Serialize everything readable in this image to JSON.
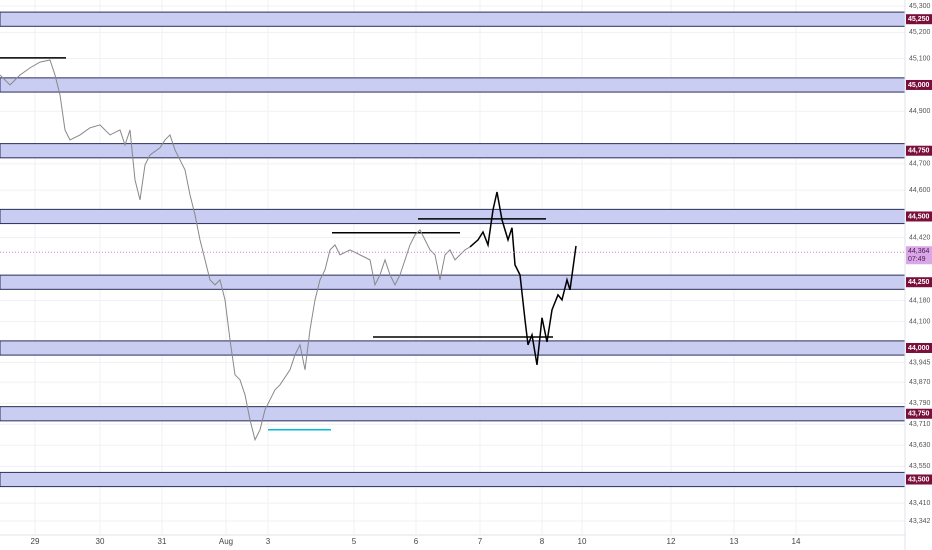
{
  "chart_data": {
    "type": "line",
    "xlim": [
      0,
      905
    ],
    "ylim": [
      43289,
      45323
    ],
    "xticks": [
      {
        "value": 35,
        "label": "29"
      },
      {
        "value": 100,
        "label": "30"
      },
      {
        "value": 162,
        "label": "31"
      },
      {
        "value": 226,
        "label": "Aug"
      },
      {
        "value": 268,
        "label": "3"
      },
      {
        "value": 354,
        "label": "5"
      },
      {
        "value": 416,
        "label": "6"
      },
      {
        "value": 480,
        "label": "7"
      },
      {
        "value": 542,
        "label": "8"
      },
      {
        "value": 582,
        "label": "10"
      },
      {
        "value": 671,
        "label": "12"
      },
      {
        "value": 734,
        "label": "13"
      },
      {
        "value": 796,
        "label": "14"
      }
    ],
    "yticks": [
      {
        "value": 45300,
        "label": "45,300"
      },
      {
        "value": 45200,
        "label": "45,200"
      },
      {
        "value": 45100,
        "label": "45,100"
      },
      {
        "value": 44900,
        "label": "44,900"
      },
      {
        "value": 44700,
        "label": "44,700"
      },
      {
        "value": 44600,
        "label": "44,600"
      },
      {
        "value": 44420,
        "label": "44,420"
      },
      {
        "value": 44180,
        "label": "44,180"
      },
      {
        "value": 44100,
        "label": "44,100"
      },
      {
        "value": 43945,
        "label": "43,945"
      },
      {
        "value": 43870,
        "label": "43,870"
      },
      {
        "value": 43790,
        "label": "43,790"
      },
      {
        "value": 43710,
        "label": "43,710"
      },
      {
        "value": 43630,
        "label": "43,630"
      },
      {
        "value": 43550,
        "label": "43,550"
      },
      {
        "value": 43410,
        "label": "43,410"
      },
      {
        "value": 43342,
        "label": "43,342"
      }
    ],
    "zones": [
      {
        "value": 45250,
        "label": "45,250"
      },
      {
        "value": 45000,
        "label": "45,000"
      },
      {
        "value": 44750,
        "label": "44,750"
      },
      {
        "value": 44500,
        "label": "44,500"
      },
      {
        "value": 44250,
        "label": "44,250"
      },
      {
        "value": 44000,
        "label": "44,000"
      },
      {
        "value": 43750,
        "label": "43,750"
      },
      {
        "value": 43500,
        "label": "43,500"
      }
    ],
    "zone_color": "#c9cdf2",
    "last_price": {
      "value": 44364,
      "label": "44,364",
      "timer": "07:49"
    },
    "series": [
      {
        "color": "#888888",
        "x": [
          0,
          10,
          20,
          30,
          40,
          50,
          55,
          60,
          65,
          70,
          80,
          90,
          100,
          110,
          120,
          125,
          130,
          135,
          140,
          145,
          150,
          160,
          165,
          170,
          175,
          180,
          185,
          190,
          195,
          200,
          205,
          210,
          215,
          220,
          225,
          230,
          235,
          240,
          245,
          250,
          255,
          260,
          265,
          270,
          275,
          280,
          290,
          295,
          300,
          305,
          310,
          315,
          320,
          325,
          330,
          335,
          340,
          350,
          360,
          370,
          375,
          380,
          385,
          390,
          395,
          400,
          405,
          410,
          415,
          420,
          425,
          430,
          435,
          440,
          445,
          450,
          455,
          460,
          465,
          470
        ],
        "values": [
          45038,
          45000,
          45038,
          45065,
          45087,
          45095,
          45038,
          44962,
          44829,
          44791,
          44810,
          44837,
          44848,
          44810,
          44829,
          44772,
          44829,
          44639,
          44563,
          44696,
          44734,
          44761,
          44791,
          44810,
          44753,
          44715,
          44677,
          44582,
          44506,
          44411,
          44335,
          44259,
          44240,
          44259,
          44183,
          44031,
          43898,
          43879,
          43822,
          43727,
          43651,
          43689,
          43765,
          43803,
          43841,
          43860,
          43917,
          43974,
          44012,
          43917,
          44069,
          44183,
          44259,
          44297,
          44373,
          44392,
          44354,
          44373,
          44354,
          44335,
          44240,
          44278,
          44335,
          44278,
          44240,
          44278,
          44335,
          44392,
          44430,
          44449,
          44411,
          44373,
          44354,
          44259,
          44354,
          44373,
          44335,
          44354,
          44373,
          44384
        ]
      },
      {
        "color": "#000000",
        "x": [
          470,
          478,
          483,
          488,
          493,
          497,
          502,
          508,
          512,
          515,
          520,
          525,
          528,
          532,
          537,
          542,
          547,
          552,
          558,
          562,
          567,
          570,
          576
        ],
        "values": [
          44384,
          44411,
          44441,
          44392,
          44525,
          44593,
          44487,
          44411,
          44457,
          44316,
          44278,
          44107,
          44012,
          44050,
          43936,
          44115,
          44023,
          44145,
          44202,
          44183,
          44259,
          44221,
          44388
        ]
      }
    ],
    "levels": [
      {
        "value": 45103,
        "x": [
          0,
          66
        ],
        "color": "#000000"
      },
      {
        "value": 44438,
        "x": [
          332,
          460
        ],
        "color": "#000000"
      },
      {
        "value": 44491,
        "x": [
          418,
          546
        ],
        "color": "#000000"
      },
      {
        "value": 44042,
        "x": [
          373,
          553
        ],
        "color": "#000000"
      },
      {
        "value": 43689,
        "x": [
          268,
          331
        ],
        "color": "#00bcd4"
      }
    ]
  }
}
